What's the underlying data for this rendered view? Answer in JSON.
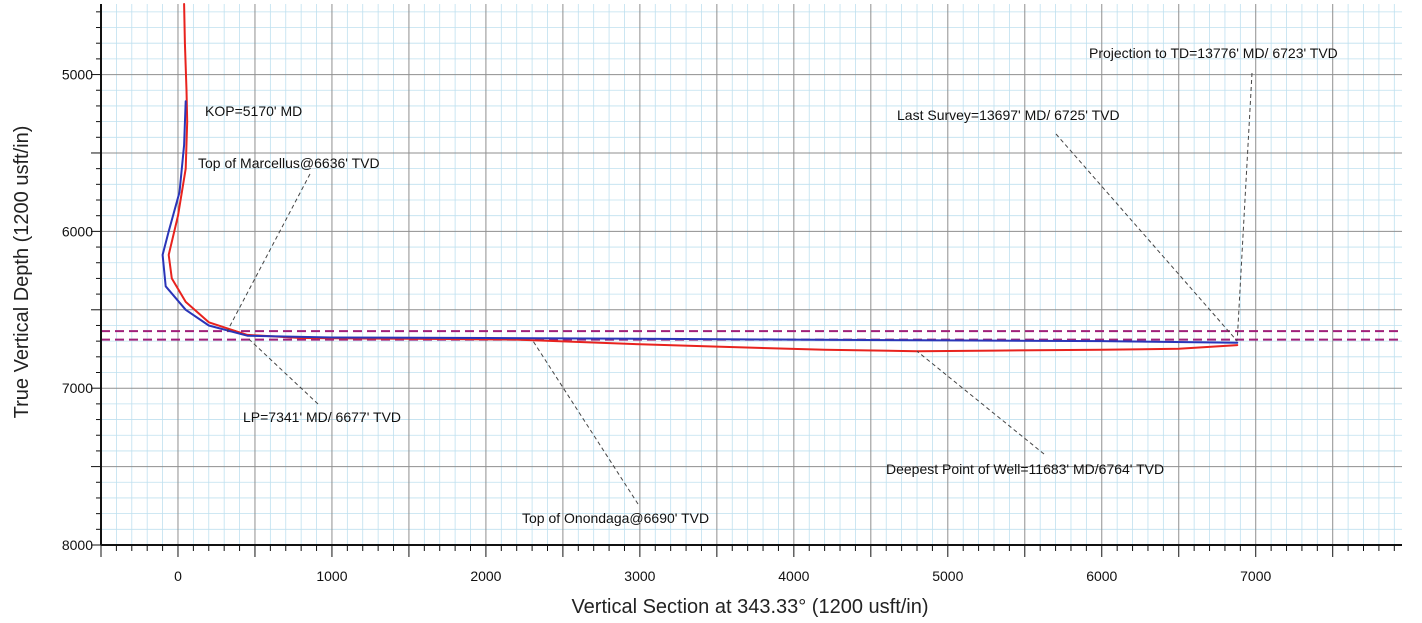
{
  "chart_data": {
    "type": "line",
    "xlabel": "Vertical Section at 343.33° (1200 usft/in)",
    "ylabel": "True Vertical Depth (1200 usft/in)",
    "xlim": [
      -500,
      7950
    ],
    "ylim": [
      4550,
      8000
    ],
    "y_inverted": true,
    "x_ticks": [
      0,
      1000,
      2000,
      3000,
      4000,
      5000,
      6000,
      7000
    ],
    "y_ticks": [
      5000,
      6000,
      7000,
      8000
    ],
    "grid": true,
    "series": [
      {
        "color": "#e8231e",
        "points": [
          [
            40,
            4550
          ],
          [
            45,
            4800
          ],
          [
            55,
            5100
          ],
          [
            60,
            5300
          ],
          [
            50,
            5600
          ],
          [
            0,
            5900
          ],
          [
            -60,
            6150
          ],
          [
            -40,
            6300
          ],
          [
            50,
            6450
          ],
          [
            200,
            6580
          ],
          [
            450,
            6660
          ],
          [
            800,
            6680
          ],
          [
            1500,
            6685
          ],
          [
            2200,
            6690
          ],
          [
            3000,
            6720
          ],
          [
            3500,
            6735
          ],
          [
            4200,
            6755
          ],
          [
            4800,
            6764
          ],
          [
            5300,
            6760
          ],
          [
            6000,
            6755
          ],
          [
            6500,
            6748
          ],
          [
            6880,
            6725
          ]
        ]
      },
      {
        "color": "#2a35b8",
        "points": [
          [
            50,
            5170
          ],
          [
            40,
            5450
          ],
          [
            10,
            5750
          ],
          [
            -60,
            6000
          ],
          [
            -100,
            6150
          ],
          [
            -80,
            6350
          ],
          [
            50,
            6500
          ],
          [
            200,
            6600
          ],
          [
            450,
            6665
          ],
          [
            1000,
            6677
          ],
          [
            2000,
            6680
          ],
          [
            3000,
            6685
          ],
          [
            4000,
            6690
          ],
          [
            5000,
            6695
          ],
          [
            6000,
            6700
          ],
          [
            6880,
            6710
          ]
        ]
      }
    ],
    "formation_lines": [
      {
        "y": 6636,
        "color": "#a0207a"
      },
      {
        "y": 6690,
        "color": "#a0207a"
      }
    ],
    "annotations": [
      {
        "text": "KOP=5170' MD",
        "point": [
          50,
          5170
        ]
      },
      {
        "text": "Top of Marcellus@6636' TVD",
        "point": [
          320,
          6636
        ]
      },
      {
        "text": "LP=7341' MD/ 6677' TVD",
        "point": [
          450,
          6677
        ]
      },
      {
        "text": "Top of Onondaga@6690' TVD",
        "point": [
          2300,
          6690
        ]
      },
      {
        "text": "Deepest Point of Well=11683' MD/6764' TVD",
        "point": [
          4800,
          6764
        ]
      },
      {
        "text": "Last Survey=13697' MD/  6725' TVD",
        "point": [
          6880,
          6700
        ]
      },
      {
        "text": "Projection to TD=13776' MD/ 6723' TVD",
        "point": [
          6880,
          6690
        ]
      }
    ]
  }
}
